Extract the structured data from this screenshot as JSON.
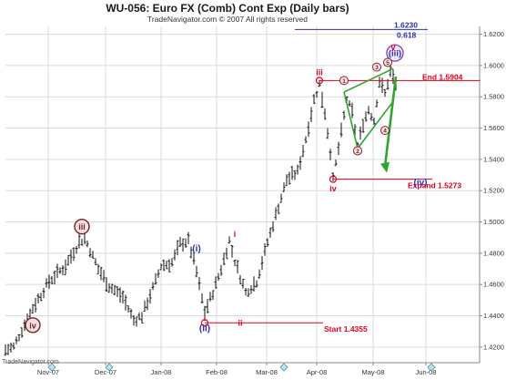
{
  "colors": {
    "grid": "#d9d9e6",
    "bars": "#111111",
    "red": "#e2001a",
    "blue": "#2b2fb3",
    "brown": "#7a2424",
    "green": "#2fa52f",
    "axis": "#888888"
  },
  "chart_data": {
    "type": "bar",
    "title": "WU-056:  Euro FX (Comb) Cont Exp  (Daily bars)",
    "subtitle": "TradeNavigator.com © 2007 All rights reserved",
    "watermark": "TradeNavigator.com",
    "bar_style": "OHLC",
    "grid": true,
    "x_tick_labels": [
      "Nov-07",
      "Dec-07",
      "Jan-08",
      "Feb-08",
      "Mar-08",
      "Apr-08",
      "May-08",
      "Jun-08"
    ],
    "y_range": [
      1.41,
      1.625
    ],
    "y_ticks": [
      1.42,
      1.44,
      1.46,
      1.48,
      1.5,
      1.52,
      1.54,
      1.56,
      1.58,
      1.6,
      1.62
    ],
    "y_tick_labels": [
      "1.4200",
      "1.4400",
      "1.4600",
      "1.4800",
      "1.5000",
      "1.5200",
      "1.5400",
      "1.5600",
      "1.5800",
      "1.6000",
      "1.6200"
    ],
    "price_anchors": [
      {
        "bar": 0,
        "price": 1.418
      },
      {
        "bar": 3,
        "price": 1.42
      },
      {
        "bar": 10,
        "price": 1.445
      },
      {
        "bar": 16,
        "price": 1.462
      },
      {
        "bar": 22,
        "price": 1.472
      },
      {
        "bar": 27,
        "price": 1.487
      },
      {
        "bar": 29,
        "price": 1.49
      },
      {
        "bar": 34,
        "price": 1.47
      },
      {
        "bar": 38,
        "price": 1.459
      },
      {
        "bar": 43,
        "price": 1.452
      },
      {
        "bar": 47,
        "price": 1.437
      },
      {
        "bar": 50,
        "price": 1.44
      },
      {
        "bar": 55,
        "price": 1.462
      },
      {
        "bar": 57,
        "price": 1.472
      },
      {
        "bar": 61,
        "price": 1.474
      },
      {
        "bar": 64,
        "price": 1.486
      },
      {
        "bar": 67,
        "price": 1.488
      },
      {
        "bar": 70,
        "price": 1.468
      },
      {
        "bar": 73,
        "price": 1.442
      },
      {
        "bar": 76,
        "price": 1.455
      },
      {
        "bar": 79,
        "price": 1.47
      },
      {
        "bar": 82,
        "price": 1.488
      },
      {
        "bar": 84,
        "price": 1.475
      },
      {
        "bar": 85,
        "price": 1.47
      },
      {
        "bar": 88,
        "price": 1.455
      },
      {
        "bar": 92,
        "price": 1.462
      },
      {
        "bar": 96,
        "price": 1.487
      },
      {
        "bar": 100,
        "price": 1.51
      },
      {
        "bar": 103,
        "price": 1.527
      },
      {
        "bar": 107,
        "price": 1.532
      },
      {
        "bar": 110,
        "price": 1.553
      },
      {
        "bar": 113,
        "price": 1.578
      },
      {
        "bar": 115,
        "price": 1.588
      },
      {
        "bar": 117,
        "price": 1.57
      },
      {
        "bar": 119,
        "price": 1.545
      },
      {
        "bar": 120,
        "price": 1.527
      },
      {
        "bar": 123,
        "price": 1.557
      },
      {
        "bar": 125,
        "price": 1.578
      },
      {
        "bar": 127,
        "price": 1.57
      },
      {
        "bar": 129,
        "price": 1.548
      },
      {
        "bar": 131,
        "price": 1.563
      },
      {
        "bar": 133,
        "price": 1.572
      },
      {
        "bar": 135,
        "price": 1.565
      },
      {
        "bar": 137,
        "price": 1.59
      },
      {
        "bar": 139,
        "price": 1.582
      },
      {
        "bar": 141,
        "price": 1.596
      },
      {
        "bar": 143,
        "price": 1.588
      }
    ],
    "levels": [
      {
        "label": "End 1.5904",
        "value": 1.5904,
        "color": "red"
      },
      {
        "label": "Expand 1.5273",
        "value": 1.5273,
        "color": "red"
      },
      {
        "label": "Start 1.4355",
        "value": 1.4355,
        "color": "red"
      },
      {
        "label": "1.6230",
        "value": 1.623,
        "color": "blue"
      }
    ],
    "level_extra_label": "0.618",
    "wave_labels": [
      {
        "text": "(i)",
        "bar": 70,
        "price": 1.483,
        "color": "blue",
        "style": "plain"
      },
      {
        "text": "(ii)",
        "bar": 73,
        "price": 1.432,
        "color": "blue",
        "style": "plain"
      },
      {
        "text": "(iii)",
        "bar": 141,
        "price": 1.608,
        "color": "blue",
        "style": "circle-outline"
      },
      {
        "text": "(iv)",
        "bar": 152,
        "price": 1.5255,
        "color": "blue",
        "style": "plain"
      },
      {
        "text": "iii",
        "bar": 28,
        "price": 1.497,
        "color": "brown",
        "style": "circle-filled"
      },
      {
        "text": "iv",
        "bar": 10,
        "price": 1.434,
        "color": "brown",
        "style": "circle-filled"
      },
      {
        "text": "i",
        "bar": 84,
        "price": 1.4925,
        "color": "red",
        "style": "plain"
      },
      {
        "text": "ii",
        "bar": 86,
        "price": 1.4355,
        "color": "red",
        "style": "plain"
      },
      {
        "text": "iii",
        "bar": 115,
        "price": 1.596,
        "color": "red",
        "style": "plain"
      },
      {
        "text": "iv",
        "bar": 120,
        "price": 1.5215,
        "color": "red",
        "style": "plain"
      },
      {
        "text": "v",
        "bar": 142,
        "price": 1.612,
        "color": "red",
        "style": "plain"
      },
      {
        "text": "1",
        "bar": 124,
        "price": 1.5904,
        "color": "brown",
        "style": "circle-small"
      },
      {
        "text": "2",
        "bar": 129,
        "price": 1.5455,
        "color": "brown",
        "style": "circle-small"
      },
      {
        "text": "3",
        "bar": 136,
        "price": 1.599,
        "color": "brown",
        "style": "circle-small"
      },
      {
        "text": "4",
        "bar": 139,
        "price": 1.5585,
        "color": "brown",
        "style": "circle-small"
      },
      {
        "text": "5",
        "bar": 140,
        "price": 1.602,
        "color": "brown",
        "style": "circle-small"
      }
    ],
    "diamond_markers": [
      17,
      38,
      102,
      156
    ]
  }
}
